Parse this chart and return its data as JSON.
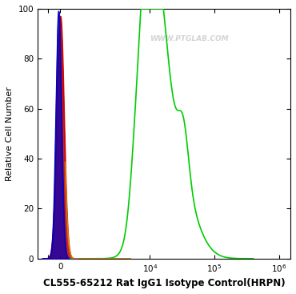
{
  "title": "CL555-65212 Rat IgG1 Isotype Control(HRPN)",
  "ylabel": "Relative Cell Number",
  "ylim": [
    0,
    100
  ],
  "background_color": "#ffffff",
  "plot_bg_color": "#ffffff",
  "watermark": "WWW.PTGLAB.COM",
  "blue_color": "#0000bb",
  "red_color": "#cc0000",
  "green_color": "#00cc00",
  "orange_color": "#cc8800",
  "title_fontsize": 8.5,
  "tick_fontsize": 7.5,
  "ylabel_fontsize": 8,
  "linthresh": 1000,
  "linscale": 0.35
}
